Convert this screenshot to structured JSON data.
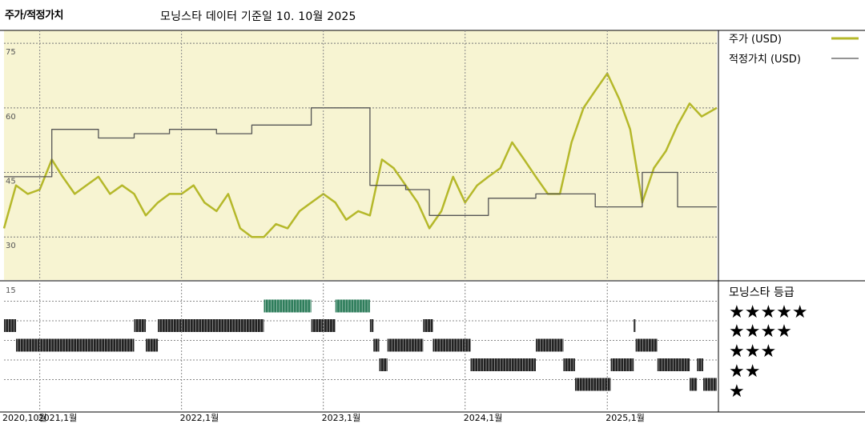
{
  "header": {
    "title": "주가/적정가치",
    "subtitle": "모닝스타 데이터 기준일 10. 10월 2025"
  },
  "legend": {
    "price_label": "주가 (USD)",
    "fair_label": "적정가치 (USD)",
    "rating_title": "모닝스타 등급",
    "price_color": "#b5b82a",
    "fair_color": "#555555",
    "stars": [
      "★★★★★",
      "★★★★",
      "★★★",
      "★★",
      "★"
    ]
  },
  "chart_data": [
    {
      "type": "line",
      "title": "주가/적정가치",
      "ylim": [
        20,
        78
      ],
      "yticks": [
        "75",
        "60",
        "45",
        "30"
      ],
      "x_range": [
        "2020-10-01",
        "2025-10-10"
      ],
      "xticks": [
        "2020,10월",
        "2021,1월",
        "2022,1월",
        "2023,1월",
        "2024,1월",
        "2025,1월"
      ],
      "grid": true,
      "background": "#f7f4d2",
      "series": [
        {
          "name": "주가 (USD)",
          "color": "#b5b82a",
          "x": [
            "2020-10-01",
            "2020-11-01",
            "2020-12-01",
            "2021-01-01",
            "2021-02-01",
            "2021-03-01",
            "2021-04-01",
            "2021-05-01",
            "2021-06-01",
            "2021-07-01",
            "2021-08-01",
            "2021-09-01",
            "2021-10-01",
            "2021-11-01",
            "2021-12-01",
            "2022-01-01",
            "2022-02-01",
            "2022-03-01",
            "2022-04-01",
            "2022-05-01",
            "2022-06-01",
            "2022-07-01",
            "2022-08-01",
            "2022-09-01",
            "2022-10-01",
            "2022-11-01",
            "2022-12-01",
            "2023-01-01",
            "2023-02-01",
            "2023-03-01",
            "2023-04-01",
            "2023-05-01",
            "2023-06-01",
            "2023-07-01",
            "2023-08-01",
            "2023-09-01",
            "2023-10-01",
            "2023-11-01",
            "2023-12-01",
            "2024-01-01",
            "2024-02-01",
            "2024-03-01",
            "2024-04-01",
            "2024-05-01",
            "2024-06-01",
            "2024-07-01",
            "2024-08-01",
            "2024-09-01",
            "2024-10-01",
            "2024-11-01",
            "2024-12-01",
            "2025-01-01",
            "2025-02-01",
            "2025-03-01",
            "2025-04-01",
            "2025-05-01",
            "2025-06-01",
            "2025-07-01",
            "2025-08-01",
            "2025-09-01",
            "2025-10-10"
          ],
          "values": [
            32,
            42,
            40,
            41,
            48,
            44,
            40,
            42,
            44,
            40,
            42,
            40,
            35,
            38,
            40,
            40,
            42,
            38,
            36,
            40,
            32,
            30,
            30,
            33,
            32,
            36,
            38,
            40,
            38,
            34,
            36,
            35,
            48,
            46,
            42,
            38,
            32,
            36,
            44,
            38,
            42,
            44,
            46,
            52,
            48,
            44,
            40,
            40,
            52,
            60,
            64,
            68,
            62,
            55,
            38,
            46,
            50,
            56,
            61,
            58,
            60
          ]
        },
        {
          "name": "적정가치 (USD)",
          "color": "#555555",
          "x": [
            "2020-10-01",
            "2021-02-01",
            "2021-02-01",
            "2021-06-01",
            "2021-06-01",
            "2021-09-01",
            "2021-09-01",
            "2021-12-01",
            "2021-12-01",
            "2022-04-01",
            "2022-04-01",
            "2022-07-01",
            "2022-07-01",
            "2022-12-01",
            "2022-12-01",
            "2023-05-01",
            "2023-05-01",
            "2023-08-01",
            "2023-08-01",
            "2023-10-01",
            "2023-10-01",
            "2024-01-01",
            "2024-01-01",
            "2024-03-01",
            "2024-03-01",
            "2024-07-01",
            "2024-07-01",
            "2024-12-01",
            "2024-12-01",
            "2025-04-01",
            "2025-04-01",
            "2025-07-01",
            "2025-07-01",
            "2025-10-10"
          ],
          "values": [
            44,
            44,
            55,
            55,
            53,
            53,
            54,
            54,
            55,
            55,
            54,
            54,
            56,
            56,
            60,
            60,
            42,
            42,
            41,
            41,
            35,
            35,
            35,
            35,
            39,
            39,
            40,
            40,
            37,
            37,
            45,
            45,
            37,
            37
          ]
        }
      ]
    },
    {
      "type": "heatmap",
      "title": "모닝스타 등급",
      "ylim": [
        0,
        15
      ],
      "yticks": [
        "15"
      ],
      "rows": [
        "★★★★★",
        "★★★★",
        "★★★",
        "★★",
        "★"
      ],
      "ratings": [
        {
          "stars": 4,
          "from": "2020-10-01",
          "to": "2020-11-01"
        },
        {
          "stars": 3,
          "from": "2020-11-01",
          "to": "2021-09-01"
        },
        {
          "stars": 4,
          "from": "2021-09-01",
          "to": "2021-10-01"
        },
        {
          "stars": 3,
          "from": "2021-10-01",
          "to": "2021-11-01"
        },
        {
          "stars": 4,
          "from": "2021-11-01",
          "to": "2022-08-01"
        },
        {
          "stars": 5,
          "from": "2022-08-01",
          "to": "2022-12-01"
        },
        {
          "stars": 4,
          "from": "2022-12-01",
          "to": "2023-02-01"
        },
        {
          "stars": 5,
          "from": "2023-02-01",
          "to": "2023-05-01"
        },
        {
          "stars": 4,
          "from": "2023-05-01",
          "to": "2023-05-10"
        },
        {
          "stars": 3,
          "from": "2023-05-10",
          "to": "2023-05-25"
        },
        {
          "stars": 2,
          "from": "2023-05-25",
          "to": "2023-06-15"
        },
        {
          "stars": 3,
          "from": "2023-06-15",
          "to": "2023-09-15"
        },
        {
          "stars": 4,
          "from": "2023-09-15",
          "to": "2023-10-10"
        },
        {
          "stars": 3,
          "from": "2023-10-10",
          "to": "2024-01-15"
        },
        {
          "stars": 2,
          "from": "2024-01-15",
          "to": "2024-07-01"
        },
        {
          "stars": 3,
          "from": "2024-07-01",
          "to": "2024-09-10"
        },
        {
          "stars": 2,
          "from": "2024-09-10",
          "to": "2024-10-10"
        },
        {
          "stars": 1,
          "from": "2024-10-10",
          "to": "2025-01-10"
        },
        {
          "stars": 2,
          "from": "2025-01-10",
          "to": "2025-03-10"
        },
        {
          "stars": 4,
          "from": "2025-03-10",
          "to": "2025-03-15"
        },
        {
          "stars": 3,
          "from": "2025-03-15",
          "to": "2025-05-10"
        },
        {
          "stars": 2,
          "from": "2025-05-10",
          "to": "2025-08-01"
        },
        {
          "stars": 1,
          "from": "2025-08-01",
          "to": "2025-08-20"
        },
        {
          "stars": 2,
          "from": "2025-08-20",
          "to": "2025-09-05"
        },
        {
          "stars": 1,
          "from": "2025-09-05",
          "to": "2025-10-10"
        }
      ]
    }
  ]
}
